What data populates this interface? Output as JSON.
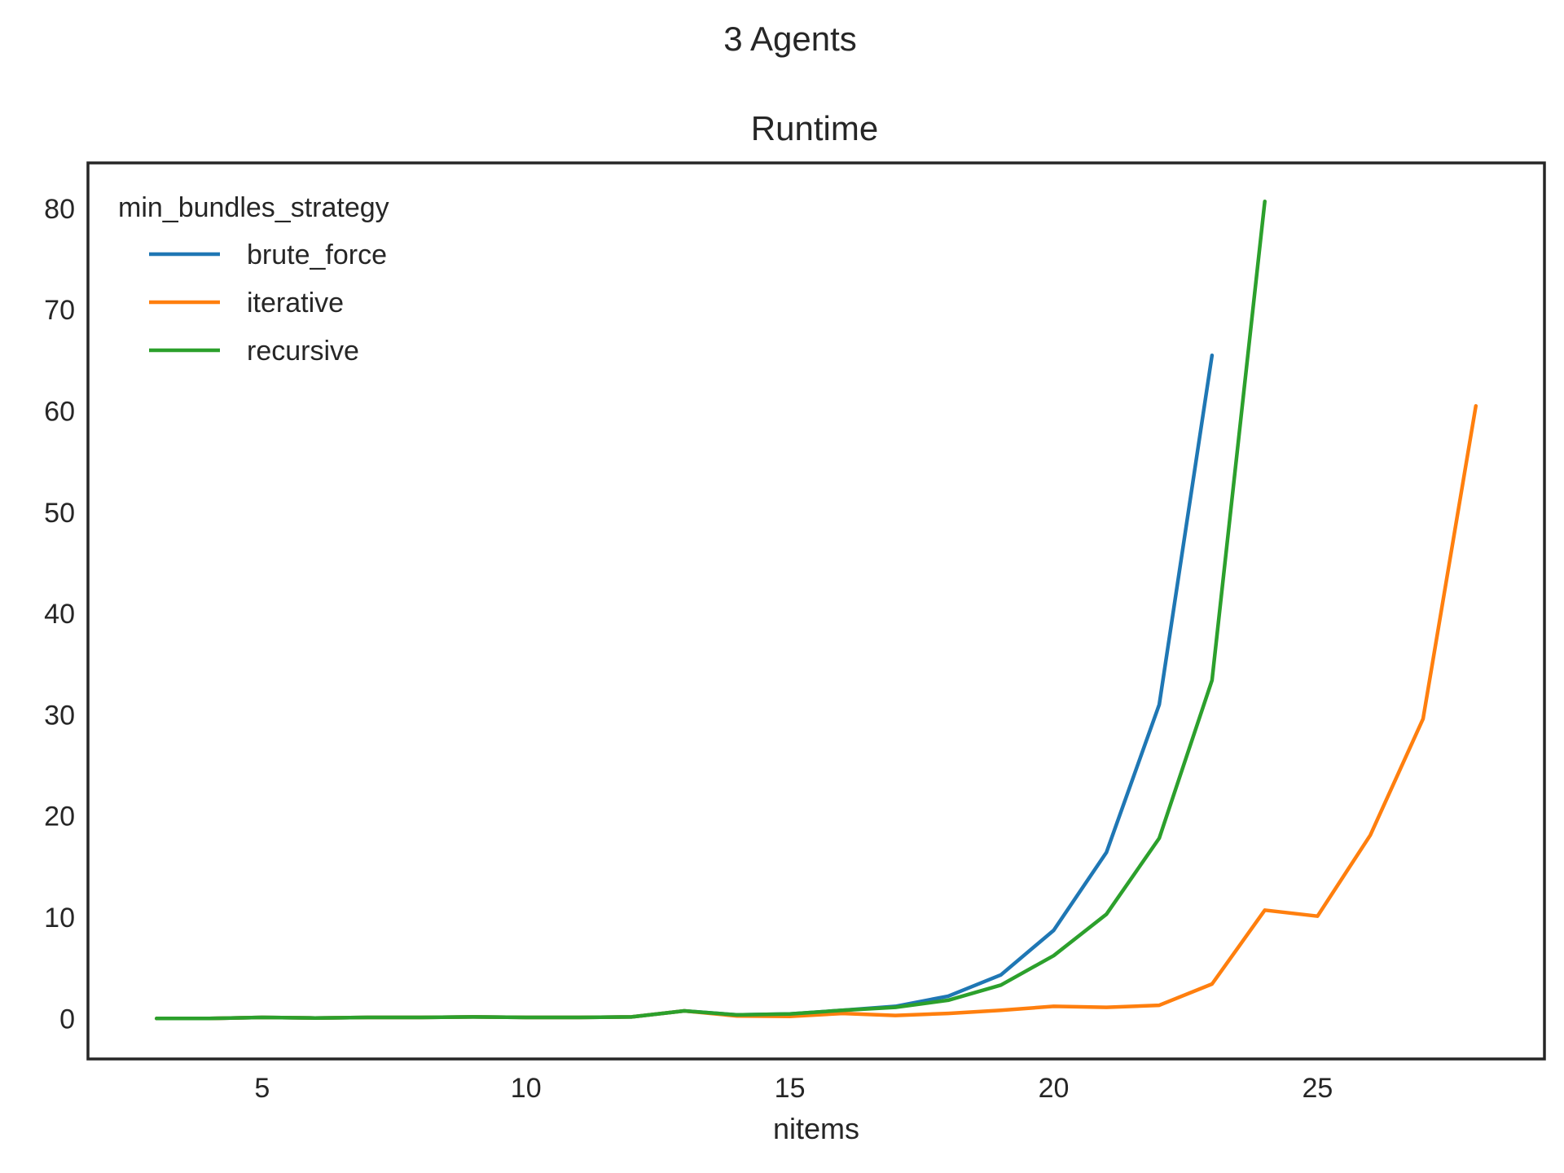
{
  "suptitle": "3 Agents",
  "chart_data": {
    "type": "line",
    "title": "Runtime",
    "xlabel": "nitems",
    "ylabel": "",
    "xlim": [
      1.7,
      29.3
    ],
    "ylim": [
      -4,
      84.5
    ],
    "xticks": [
      5,
      10,
      15,
      20,
      25
    ],
    "yticks": [
      0,
      10,
      20,
      30,
      40,
      50,
      60,
      70,
      80
    ],
    "grid": false,
    "legend": {
      "title": "min_bundles_strategy",
      "placement": "top-left"
    },
    "series": [
      {
        "name": "brute_force",
        "color": "#1f77b4",
        "x": [
          3,
          4,
          5,
          6,
          7,
          8,
          9,
          10,
          11,
          12,
          13,
          14,
          15,
          16,
          17,
          18,
          19,
          20,
          21,
          22,
          23
        ],
        "y": [
          0.0,
          0.0,
          0.1,
          0.05,
          0.1,
          0.1,
          0.15,
          0.1,
          0.1,
          0.15,
          0.75,
          0.35,
          0.45,
          0.8,
          1.2,
          2.2,
          4.3,
          8.7,
          16.4,
          31.0,
          65.5
        ]
      },
      {
        "name": "iterative",
        "color": "#ff7f0e",
        "x": [
          3,
          4,
          5,
          6,
          7,
          8,
          9,
          10,
          11,
          12,
          13,
          14,
          15,
          16,
          17,
          18,
          19,
          20,
          21,
          22,
          23,
          24,
          25,
          26,
          27,
          28
        ],
        "y": [
          0.0,
          0.0,
          0.1,
          0.05,
          0.1,
          0.1,
          0.15,
          0.1,
          0.1,
          0.15,
          0.75,
          0.25,
          0.2,
          0.5,
          0.3,
          0.5,
          0.8,
          1.2,
          1.1,
          1.3,
          3.4,
          10.7,
          10.1,
          18.1,
          29.6,
          60.5
        ]
      },
      {
        "name": "recursive",
        "color": "#2ca02c",
        "x": [
          3,
          4,
          5,
          6,
          7,
          8,
          9,
          10,
          11,
          12,
          13,
          14,
          15,
          16,
          17,
          18,
          19,
          20,
          21,
          22,
          23,
          24
        ],
        "y": [
          0.0,
          0.0,
          0.1,
          0.05,
          0.1,
          0.1,
          0.15,
          0.1,
          0.1,
          0.15,
          0.75,
          0.35,
          0.45,
          0.8,
          1.1,
          1.8,
          3.3,
          6.2,
          10.3,
          17.8,
          33.4,
          80.7
        ]
      }
    ]
  }
}
